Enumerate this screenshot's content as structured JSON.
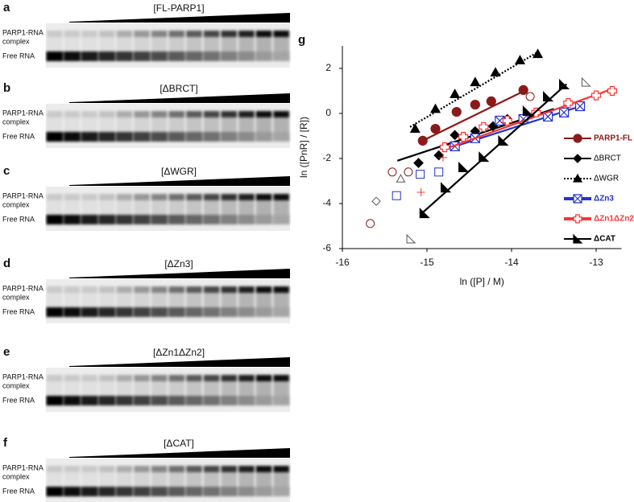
{
  "panels": [
    {
      "letter": "a",
      "title": "[FL-PARP1]",
      "complex_label": [
        "PARP1-RNA",
        "complex"
      ],
      "free_label": "Free RNA"
    },
    {
      "letter": "b",
      "title": "[ΔBRCT]",
      "complex_label": [
        "PARP1-RNA",
        "complex"
      ],
      "free_label": "Free RNA"
    },
    {
      "letter": "c",
      "title": "[ΔWGR]",
      "complex_label": [
        "PARP1-RNA",
        "complex"
      ],
      "free_label": "Free RNA"
    },
    {
      "letter": "d",
      "title": "[ΔZn3]",
      "complex_label": [
        "PARP1-RNA",
        "complex"
      ],
      "free_label": "Free RNA"
    },
    {
      "letter": "e",
      "title": "[ΔZn1ΔZn2]",
      "complex_label": [
        "PARP1-RNA",
        "complex"
      ],
      "free_label": "Free RNA"
    },
    {
      "letter": "f",
      "title": "[ΔCAT]",
      "complex_label": [
        "PARP1-RNA",
        "complex"
      ],
      "free_label": "Free RNA"
    }
  ],
  "chart_data": {
    "type": "scatter",
    "letter": "g",
    "x_label": "ln ([P] / M)",
    "y_label": "ln ([PnR] / [R])",
    "xlim": [
      -16,
      -12.7
    ],
    "ylim": [
      -6,
      3
    ],
    "xticks": [
      -16,
      -15,
      -14,
      -13
    ],
    "yticks": [
      -6,
      -4,
      -2,
      0,
      2
    ],
    "series": [
      {
        "name": "PARP1-FL",
        "color": "#8b1a1a",
        "marker": "circle",
        "line": "solid",
        "x": [
          -15.05,
          -14.9,
          -14.65,
          -14.43,
          -14.24,
          -13.86
        ],
        "values": [
          -1.21,
          -0.68,
          0.07,
          0.39,
          0.54,
          1.04
        ],
        "fit_x": [
          -15.1,
          -13.85
        ],
        "fit_y": [
          -1.3,
          1.0
        ],
        "open_x": [
          -15.67,
          -15.41,
          -15.22,
          -13.78
        ],
        "open_y": [
          -4.89,
          -2.6,
          -2.6,
          0.75
        ]
      },
      {
        "name": "ΔBRCT",
        "color": "#000000",
        "marker": "diamond",
        "line": "solid",
        "x": [
          -15.1,
          -14.86,
          -14.67,
          -14.43,
          -14.22,
          -14.05
        ],
        "values": [
          -2.2,
          -1.86,
          -0.96,
          -0.79,
          -0.57,
          -0.25
        ],
        "fit_x": [
          -15.35,
          -13.5
        ],
        "fit_y": [
          -2.1,
          0.2
        ],
        "open_x": [
          -15.6
        ],
        "open_y": [
          -3.9
        ]
      },
      {
        "name": "ΔWGR",
        "color": "#000000",
        "marker": "triangle",
        "line": "dotted",
        "x": [
          -15.14,
          -14.9,
          -14.67,
          -14.43,
          -14.19,
          -13.9,
          -13.69
        ],
        "values": [
          -0.68,
          0.2,
          0.86,
          1.39,
          1.82,
          2.36,
          2.64
        ],
        "fit_x": [
          -15.2,
          -13.7
        ],
        "fit_y": [
          -0.6,
          2.7
        ],
        "open_x": [
          -15.31
        ],
        "open_y": [
          -2.9
        ]
      },
      {
        "name": "ΔZn3",
        "color": "#2233cc",
        "marker": "squarex",
        "line": "solid",
        "x": [
          -14.67,
          -14.43,
          -14.14,
          -13.86,
          -13.57,
          -13.38,
          -13.19
        ],
        "values": [
          -1.46,
          -1.1,
          -0.32,
          -0.25,
          -0.14,
          0.04,
          0.32
        ],
        "fit_x": [
          -14.7,
          -13.2
        ],
        "fit_y": [
          -1.5,
          0.3
        ],
        "open_x": [
          -15.36,
          -15.08,
          -14.86
        ],
        "open_y": [
          -3.65,
          -2.7,
          -2.6
        ]
      },
      {
        "name": "ΔZn1ΔZn2",
        "color": "#ff3333",
        "marker": "cross",
        "line": "solid",
        "x": [
          -14.79,
          -14.57,
          -14.33,
          -14.05,
          -13.71,
          -13.33,
          -13.0,
          -12.81
        ],
        "values": [
          -1.5,
          -1.04,
          -0.6,
          -0.32,
          0.04,
          0.46,
          0.8,
          1.0
        ],
        "fit_x": [
          -14.8,
          -12.8
        ],
        "fit_y": [
          -1.6,
          1.1
        ],
        "open_x": [
          -15.07,
          -14.81
        ],
        "open_y": [
          -3.5,
          -1.96
        ]
      },
      {
        "name": "ΔCAT",
        "color": "#000000",
        "marker": "rtriangle",
        "line": "solid",
        "x": [
          -15.03,
          -14.78,
          -14.57,
          -14.33,
          -14.1,
          -13.81,
          -13.57,
          -13.38
        ],
        "values": [
          -4.43,
          -3.29,
          -2.39,
          -1.93,
          -1.21,
          0.11,
          0.75,
          1.29
        ],
        "fit_x": [
          -15.05,
          -13.35
        ],
        "fit_y": [
          -4.4,
          1.3
        ],
        "open_x": [
          -15.19,
          -13.12
        ],
        "open_y": [
          -5.57,
          1.39
        ]
      }
    ]
  }
}
